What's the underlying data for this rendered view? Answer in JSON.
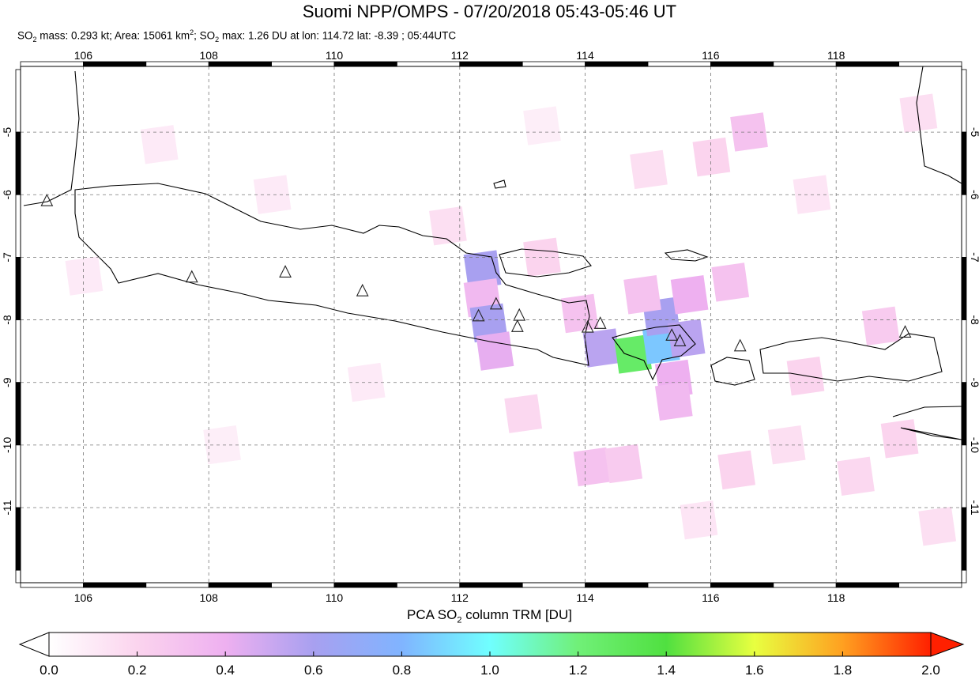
{
  "title": "Suomi NPP/OMPS - 07/20/2018 05:43-05:46 UT",
  "subtitle": {
    "mass_prefix": "SO",
    "sub2": "2",
    "mass_text": " mass: 0.293 kt; Area: 15061 km",
    "sup2": "2",
    "max_prefix": "; SO",
    "max_text": " max: 1.26 DU at lon: 114.72 lat: -8.39 ; 05:44UTC"
  },
  "map": {
    "lon_range": [
      105,
      120
    ],
    "lat_range": [
      -12.2,
      -3.95
    ],
    "lon_ticks": [
      "106",
      "108",
      "110",
      "112",
      "114",
      "116",
      "118"
    ],
    "lat_ticks": [
      "-5",
      "-6",
      "-7",
      "-8",
      "-9",
      "-10",
      "-11"
    ],
    "grid": true,
    "volcano_marker": "triangle-icon",
    "volcanoes": [
      [
        105.42,
        -6.1
      ],
      [
        107.73,
        -7.32
      ],
      [
        109.22,
        -7.24
      ],
      [
        110.45,
        -7.54
      ],
      [
        112.3,
        -7.94
      ],
      [
        112.58,
        -7.75
      ],
      [
        112.95,
        -7.93
      ],
      [
        112.92,
        -8.11
      ],
      [
        114.04,
        -8.12
      ],
      [
        114.24,
        -8.06
      ],
      [
        115.38,
        -8.25
      ],
      [
        115.51,
        -8.34
      ],
      [
        116.47,
        -8.42
      ],
      [
        119.1,
        -8.2
      ]
    ],
    "so2_cells": [
      {
        "lon": 112.35,
        "lat": -7.2,
        "v": 0.6
      },
      {
        "lon": 112.35,
        "lat": -7.65,
        "v": 0.35
      },
      {
        "lon": 112.45,
        "lat": -8.05,
        "v": 0.6
      },
      {
        "lon": 112.55,
        "lat": -8.5,
        "v": 0.42
      },
      {
        "lon": 114.25,
        "lat": -8.45,
        "v": 0.55
      },
      {
        "lon": 114.75,
        "lat": -8.55,
        "v": 1.26
      },
      {
        "lon": 115.2,
        "lat": -8.4,
        "v": 0.85
      },
      {
        "lon": 115.2,
        "lat": -7.95,
        "v": 0.6
      },
      {
        "lon": 115.6,
        "lat": -8.3,
        "v": 0.55
      },
      {
        "lon": 115.65,
        "lat": -7.6,
        "v": 0.4
      },
      {
        "lon": 114.9,
        "lat": -7.6,
        "v": 0.3
      },
      {
        "lon": 115.4,
        "lat": -8.95,
        "v": 0.4
      },
      {
        "lon": 115.4,
        "lat": -9.3,
        "v": 0.35
      },
      {
        "lon": 114.1,
        "lat": -10.35,
        "v": 0.3
      },
      {
        "lon": 114.6,
        "lat": -10.3,
        "v": 0.25
      },
      {
        "lon": 116.6,
        "lat": -5.0,
        "v": 0.3
      },
      {
        "lon": 116.0,
        "lat": -5.4,
        "v": 0.2
      },
      {
        "lon": 115.0,
        "lat": -5.6,
        "v": 0.15
      },
      {
        "lon": 113.3,
        "lat": -7.0,
        "v": 0.2
      },
      {
        "lon": 113.9,
        "lat": -7.9,
        "v": 0.3
      },
      {
        "lon": 116.3,
        "lat": -7.4,
        "v": 0.3
      },
      {
        "lon": 117.5,
        "lat": -8.9,
        "v": 0.2
      },
      {
        "lon": 118.7,
        "lat": -8.1,
        "v": 0.25
      },
      {
        "lon": 119.0,
        "lat": -9.9,
        "v": 0.2
      },
      {
        "lon": 111.8,
        "lat": -6.5,
        "v": 0.15
      },
      {
        "lon": 109.0,
        "lat": -6.0,
        "v": 0.1
      },
      {
        "lon": 107.2,
        "lat": -5.2,
        "v": 0.1
      },
      {
        "lon": 110.5,
        "lat": -9.0,
        "v": 0.1
      },
      {
        "lon": 108.2,
        "lat": -10.0,
        "v": 0.08
      },
      {
        "lon": 113.0,
        "lat": -9.5,
        "v": 0.18
      },
      {
        "lon": 116.4,
        "lat": -10.4,
        "v": 0.2
      },
      {
        "lon": 117.2,
        "lat": -10.0,
        "v": 0.15
      },
      {
        "lon": 118.3,
        "lat": -10.5,
        "v": 0.18
      },
      {
        "lon": 119.6,
        "lat": -11.3,
        "v": 0.15
      },
      {
        "lon": 115.8,
        "lat": -11.2,
        "v": 0.12
      },
      {
        "lon": 106.0,
        "lat": -7.3,
        "v": 0.1
      },
      {
        "lon": 119.3,
        "lat": -4.7,
        "v": 0.15
      },
      {
        "lon": 117.6,
        "lat": -6.0,
        "v": 0.12
      },
      {
        "lon": 113.3,
        "lat": -4.9,
        "v": 0.08
      }
    ]
  },
  "colorbar": {
    "title_prefix": "PCA SO",
    "title_sub": "2",
    "title_suffix": " column TRM [DU]",
    "range": [
      0,
      2
    ],
    "ticks": [
      "0.0",
      "0.2",
      "0.4",
      "0.6",
      "0.8",
      "1.0",
      "1.2",
      "1.4",
      "1.6",
      "1.8",
      "2.0"
    ],
    "colors": [
      "#ffffff",
      "#fbd4ee",
      "#eeb0f0",
      "#a8a0f0",
      "#80b4ff",
      "#70ffff",
      "#70f078",
      "#50e040",
      "#e8ff40",
      "#ffa020",
      "#ff2000"
    ]
  }
}
